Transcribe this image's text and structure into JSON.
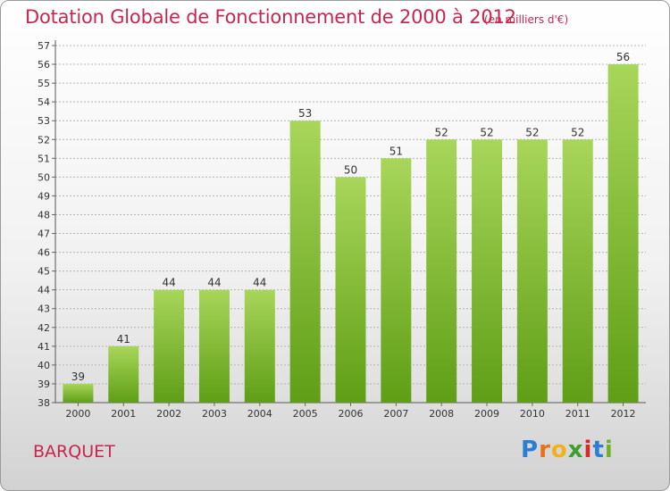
{
  "title": "Dotation Globale de Fonctionnement de 2000 à 2012",
  "unit_note": "(en milliers d'€)",
  "place_name": "BARQUET",
  "logo": {
    "letters": [
      "P",
      "r",
      "o",
      "x",
      "i",
      "t",
      "i"
    ],
    "colors": [
      "#2a7fd4",
      "#e8721c",
      "#f0b21b",
      "#3f9e2f",
      "#d4292f",
      "#2a7fd4",
      "#6fb32a"
    ]
  },
  "colors": {
    "bar_top": "#a8d65a",
    "bar_bottom": "#5f9e16",
    "text": "#c8264e",
    "grid": "#b4b4b4"
  },
  "chart_data": {
    "type": "bar",
    "categories": [
      "2000",
      "2001",
      "2002",
      "2003",
      "2004",
      "2005",
      "2006",
      "2007",
      "2008",
      "2009",
      "2010",
      "2011",
      "2012"
    ],
    "values": [
      39,
      41,
      44,
      44,
      44,
      53,
      50,
      51,
      52,
      52,
      52,
      52,
      56
    ],
    "ylim": [
      38,
      57
    ],
    "yticks": [
      38,
      39,
      40,
      41,
      42,
      43,
      44,
      45,
      46,
      47,
      48,
      49,
      50,
      51,
      52,
      53,
      54,
      55,
      56,
      57
    ],
    "grid": true,
    "data_labels": true
  }
}
